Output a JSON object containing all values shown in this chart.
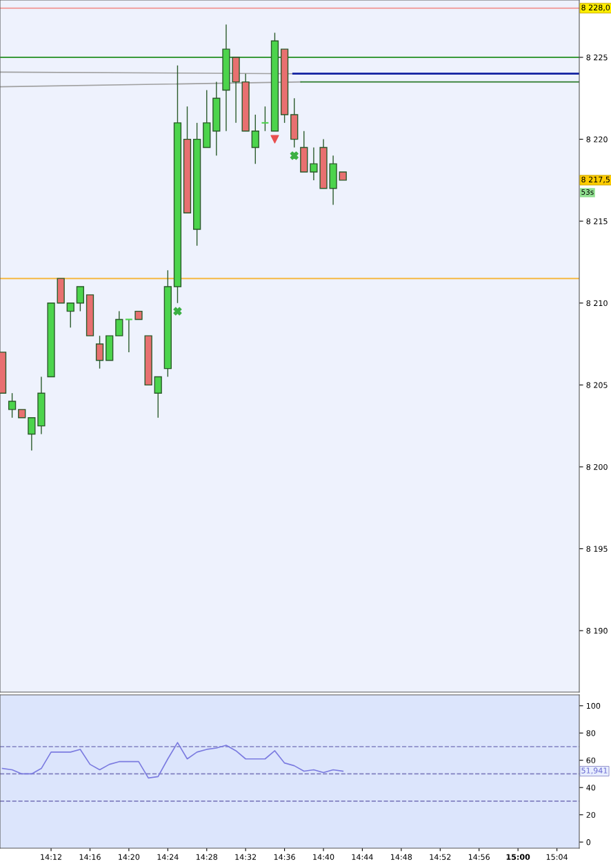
{
  "chart_data": [
    {
      "type": "candlestick",
      "x": [
        14.1167,
        14.1333,
        14.15,
        14.1667,
        14.1833,
        14.2,
        14.2167,
        14.2333,
        14.25,
        14.2667,
        14.2833,
        14.3,
        14.3167,
        14.3333,
        14.35,
        14.3667,
        14.3833,
        14.4,
        14.4167,
        14.4333,
        14.45,
        14.4667,
        14.4833,
        14.5,
        14.5167,
        14.5333,
        14.55,
        14.5667,
        14.5833,
        14.6,
        14.6167,
        14.6333,
        14.65,
        14.6667,
        14.6833,
        14.7
      ],
      "ohlc": [
        [
          8207,
          8207,
          8204.5,
          8204.5
        ],
        [
          8203.5,
          8204.5,
          8203,
          8204
        ],
        [
          8203.5,
          8203.5,
          8203,
          8203
        ],
        [
          8202,
          8203,
          8201,
          8203
        ],
        [
          8202.5,
          8205.5,
          8202,
          8204.5
        ],
        [
          8205.5,
          8210,
          8205.5,
          8210
        ],
        [
          8211.5,
          8211.5,
          8210,
          8210
        ],
        [
          8209.5,
          8210,
          8208.5,
          8210
        ],
        [
          8210,
          8211,
          8209.5,
          8211
        ],
        [
          8210.5,
          8210.5,
          8208,
          8208
        ],
        [
          8207.5,
          8208,
          8206,
          8206.5
        ],
        [
          8206.5,
          8208,
          8206.5,
          8208
        ],
        [
          8208,
          8209.5,
          8208,
          8209
        ],
        [
          8209,
          8209,
          8207,
          8209
        ],
        [
          8209.5,
          8209.5,
          8209,
          8209
        ],
        [
          8208,
          8208,
          8205,
          8205
        ],
        [
          8204.5,
          8205.5,
          8203,
          8205.5
        ],
        [
          8206,
          8212,
          8205.5,
          8211
        ],
        [
          8211,
          8224.5,
          8210,
          8221
        ],
        [
          8220,
          8222,
          8215.5,
          8215.5
        ],
        [
          8214.5,
          8221,
          8213.5,
          8220
        ],
        [
          8219.5,
          8223,
          8219.5,
          8221
        ],
        [
          8220.5,
          8223.5,
          8219,
          8222.5
        ],
        [
          8223,
          8227,
          8220.5,
          8225.5
        ],
        [
          8225,
          8225,
          8221,
          8223.5
        ],
        [
          8223.5,
          8224,
          8220.5,
          8220.5
        ],
        [
          8219.5,
          8221.5,
          8218.5,
          8220.5
        ],
        [
          8221,
          8222,
          8220.5,
          8221
        ],
        [
          8220.5,
          8226.5,
          8220.5,
          8226
        ],
        [
          8225.5,
          8225.5,
          8221,
          8221.5
        ],
        [
          8221.5,
          8222.5,
          8219.5,
          8220
        ],
        [
          8219.5,
          8220.5,
          8218,
          8218
        ],
        [
          8218,
          8219.5,
          8217.5,
          8218.5
        ],
        [
          8219.5,
          8220,
          8217,
          8217
        ],
        [
          8217,
          8219,
          8216,
          8218.5
        ],
        [
          8218,
          8218,
          8217.5,
          8217.5
        ]
      ],
      "colors": [
        "#e87070",
        "#4cd44c",
        "#e87070",
        "#4cd44c",
        "#4cd44c",
        "#4cd44c",
        "#e87070",
        "#4cd44c",
        "#4cd44c",
        "#e87070",
        "#e87070",
        "#4cd44c",
        "#4cd44c",
        "#4cd44c",
        "#e87070",
        "#e87070",
        "#4cd44c",
        "#4cd44c",
        "#4cd44c",
        "#e87070",
        "#4cd44c",
        "#4cd44c",
        "#4cd44c",
        "#4cd44c",
        "#e87070",
        "#e87070",
        "#4cd44c",
        "#4cd44c",
        "#4cd44c",
        "#e87070",
        "#e87070",
        "#e87070",
        "#4cd44c",
        "#e87070",
        "#4cd44c",
        "#e87070"
      ],
      "series": [
        {
          "type": "line",
          "color": "#a0a0a0",
          "x": [
            14.1125,
            14.615
          ],
          "values": [
            8224.1,
            8224.0
          ]
        },
        {
          "type": "line",
          "color": "#a0a0a0",
          "x": [
            14.1125,
            14.628
          ],
          "values": [
            8223.2,
            8223.5
          ]
        },
        {
          "type": "line",
          "color": "#1020a0",
          "x": [
            14.615,
            15.105
          ],
          "values": [
            8224.0,
            8224.0
          ]
        },
        {
          "type": "line",
          "color": "#2a7a2a",
          "x": [
            14.628,
            15.105
          ],
          "values": [
            8223.5,
            8223.5
          ]
        },
        {
          "type": "scatter",
          "marker": "cross",
          "color": "#3cb043",
          "x": [
            14.4167,
            14.6167
          ],
          "values": [
            8209.5,
            8219
          ]
        },
        {
          "type": "scatter",
          "marker": "triangle",
          "color": "#e85050",
          "x": [
            14.5833
          ],
          "values": [
            8220
          ]
        }
      ],
      "xlim": [
        14.1125,
        15.105
      ],
      "ylim": [
        8186.25,
        8228.5
      ],
      "yticks": [
        {
          "value": 8190,
          "label": "8 190"
        },
        {
          "value": 8195,
          "label": "8 195"
        },
        {
          "value": 8200,
          "label": "8 200"
        },
        {
          "value": 8205,
          "label": "8 205"
        },
        {
          "value": 8210,
          "label": "8 210"
        },
        {
          "value": 8215,
          "label": "8 215"
        },
        {
          "value": 8220,
          "label": "8 220"
        },
        {
          "value": 8225,
          "label": "8 225"
        }
      ],
      "ref_lines": [
        {
          "axis": "y",
          "value": 8228,
          "label": "8 228,0",
          "color": "#f0a8a8"
        },
        {
          "axis": "y",
          "value": 8225,
          "color": "#3a9a3a"
        },
        {
          "axis": "y",
          "value": 8211.5,
          "color": "#f5b942"
        }
      ],
      "annotations": [
        "8 217,5",
        "53s"
      ],
      "tick_labels": "y",
      "grid": false,
      "legend": false
    },
    {
      "type": "line",
      "x": [
        14.1167,
        14.1333,
        14.15,
        14.1667,
        14.1833,
        14.2,
        14.2167,
        14.2333,
        14.25,
        14.2667,
        14.2833,
        14.3,
        14.3167,
        14.3333,
        14.35,
        14.3667,
        14.3833,
        14.4,
        14.4167,
        14.4333,
        14.45,
        14.4667,
        14.4833,
        14.5,
        14.5167,
        14.5333,
        14.55,
        14.5667,
        14.5833,
        14.6,
        14.6167,
        14.6333,
        14.65,
        14.6667,
        14.6833,
        14.7
      ],
      "series": [
        {
          "color": "#7b7be0",
          "values": [
            54,
            53,
            50,
            50,
            54,
            66,
            66,
            66,
            68,
            57,
            53,
            57,
            59,
            59,
            59,
            47,
            48,
            61,
            73,
            61,
            66,
            68,
            69,
            71,
            67,
            61,
            61,
            61,
            67,
            58,
            56,
            52,
            53,
            51,
            53,
            52
          ]
        }
      ],
      "xlim": [
        14.1125,
        15.105
      ],
      "xticks": [
        {
          "value": 14.2,
          "label": "14:12"
        },
        {
          "value": 14.2667,
          "label": "14:16"
        },
        {
          "value": 14.3333,
          "label": "14:20"
        },
        {
          "value": 14.4,
          "label": "14:24"
        },
        {
          "value": 14.4667,
          "label": "14:28"
        },
        {
          "value": 14.5333,
          "label": "14:32"
        },
        {
          "value": 14.6,
          "label": "14:36"
        },
        {
          "value": 14.6667,
          "label": "14:40"
        },
        {
          "value": 14.7333,
          "label": "14:44"
        },
        {
          "value": 14.8,
          "label": "14:48"
        },
        {
          "value": 14.8667,
          "label": "14:52"
        },
        {
          "value": 14.9333,
          "label": "14:56"
        },
        {
          "value": 15,
          "label": "15:00"
        },
        {
          "value": 15.0667,
          "label": "15:04"
        }
      ],
      "ylim": [
        -4.5,
        108
      ],
      "yticks": [
        0,
        20,
        40,
        60,
        80,
        100
      ],
      "ref_lines": [
        {
          "axis": "y",
          "value": 70,
          "color": "#8080c0",
          "line_style": "dashed"
        },
        {
          "axis": "y",
          "value": 50,
          "color": "#8080c0",
          "line_style": "dashed"
        },
        {
          "axis": "y",
          "value": 30,
          "color": "#8080c0",
          "line_style": "dashed"
        }
      ],
      "annotations": [
        "51,941"
      ],
      "marker": "none",
      "line_style": "solid",
      "grid": false,
      "legend": false
    }
  ]
}
